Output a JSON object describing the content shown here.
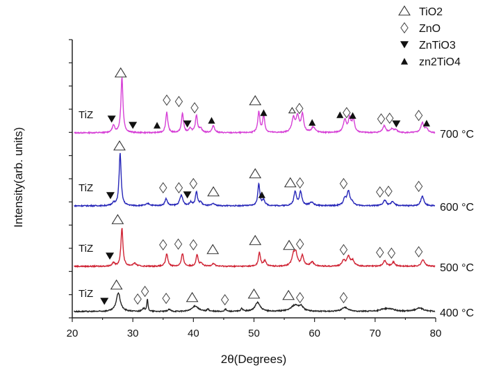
{
  "chart_data": {
    "type": "line",
    "title": "",
    "xlabel": "2θ(Degrees)",
    "ylabel": "Intensity(arb. units)",
    "xlim": [
      20,
      80
    ],
    "ylim": [
      0,
      400
    ],
    "xticks": [
      20,
      30,
      40,
      50,
      60,
      70,
      80
    ],
    "grid": false,
    "legend": {
      "placement": "top-right",
      "entries": [
        {
          "symbol": "open-triangle",
          "label": "TiO2"
        },
        {
          "symbol": "open-diamond",
          "label": "ZnO"
        },
        {
          "symbol": "down-triangle",
          "label": "ZnTiO3"
        },
        {
          "symbol": "up-triangle",
          "label": "zn2TiO4"
        }
      ]
    },
    "series": [
      {
        "name": "700 °C",
        "sample_label": "TiZ",
        "color": "#d63fd6",
        "offset": 266,
        "peaks": [
          [
            26.8,
            10,
            0.25
          ],
          [
            28.2,
            80,
            0.2
          ],
          [
            35.6,
            30,
            0.2
          ],
          [
            38.2,
            28,
            0.2
          ],
          [
            39.5,
            6,
            0.25
          ],
          [
            40.5,
            25,
            0.2
          ],
          [
            41.2,
            6,
            0.25
          ],
          [
            43.3,
            10,
            0.25
          ],
          [
            50.8,
            30,
            0.2
          ],
          [
            51.6,
            25,
            0.2
          ],
          [
            56.5,
            20,
            0.3
          ],
          [
            57.2,
            22,
            0.3
          ],
          [
            58.0,
            25,
            0.25
          ],
          [
            59.8,
            8,
            0.35
          ],
          [
            65.0,
            18,
            0.3
          ],
          [
            65.8,
            20,
            0.25
          ],
          [
            66.4,
            18,
            0.25
          ],
          [
            71.5,
            10,
            0.3
          ],
          [
            72.8,
            5,
            0.3
          ],
          [
            73.4,
            4,
            0.3
          ],
          [
            77.8,
            14,
            0.3
          ],
          [
            78.5,
            5,
            0.3
          ]
        ],
        "markers": [
          [
            26.5,
            "down",
            286
          ],
          [
            28.0,
            "open-tri",
            352
          ],
          [
            30.0,
            "down",
            277
          ],
          [
            34.0,
            "up",
            277
          ],
          [
            35.6,
            "diamond",
            313
          ],
          [
            37.6,
            "diamond",
            311
          ],
          [
            39.0,
            "down",
            279
          ],
          [
            40.2,
            "diamond",
            302
          ],
          [
            43.0,
            "up",
            284
          ],
          [
            50.2,
            "open-tri",
            312
          ],
          [
            51.6,
            "up",
            295
          ],
          [
            56.3,
            "open-tri-small",
            298
          ],
          [
            57.5,
            "diamond",
            301
          ],
          [
            59.6,
            "up",
            281
          ],
          [
            64.2,
            "up",
            292
          ],
          [
            65.3,
            "diamond",
            295
          ],
          [
            66.3,
            "up",
            291
          ],
          [
            71.0,
            "diamond",
            286
          ],
          [
            72.4,
            "diamond",
            287
          ],
          [
            73.5,
            "down",
            279
          ],
          [
            77.2,
            "diamond",
            291
          ],
          [
            78.5,
            "up",
            280
          ]
        ]
      },
      {
        "name": "600 °C",
        "sample_label": "TiZ",
        "color": "#2626b8",
        "offset": 161,
        "peaks": [
          [
            26.8,
            4,
            0.25
          ],
          [
            27.9,
            76,
            0.2
          ],
          [
            32.5,
            3,
            0.4
          ],
          [
            35.5,
            10,
            0.25
          ],
          [
            38.0,
            15,
            0.3
          ],
          [
            39.6,
            5,
            0.25
          ],
          [
            40.5,
            20,
            0.2
          ],
          [
            41.2,
            5,
            0.25
          ],
          [
            43.3,
            3,
            0.3
          ],
          [
            50.8,
            32,
            0.2
          ],
          [
            51.6,
            8,
            0.25
          ],
          [
            56.8,
            20,
            0.25
          ],
          [
            57.7,
            20,
            0.25
          ],
          [
            59.5,
            5,
            0.4
          ],
          [
            65.0,
            10,
            0.3
          ],
          [
            65.6,
            20,
            0.25
          ],
          [
            66.2,
            5,
            0.3
          ],
          [
            71.6,
            8,
            0.3
          ],
          [
            72.9,
            6,
            0.3
          ],
          [
            77.8,
            14,
            0.3
          ]
        ],
        "markers": [
          [
            26.3,
            "down",
            176
          ],
          [
            27.8,
            "open-tri",
            247
          ],
          [
            35.0,
            "diamond",
            187
          ],
          [
            37.6,
            "diamond",
            187
          ],
          [
            39.0,
            "down",
            177
          ],
          [
            40.0,
            "diamond",
            193
          ],
          [
            43.3,
            "open-tri",
            181
          ],
          [
            50.2,
            "open-tri",
            207
          ],
          [
            51.3,
            "up",
            177
          ],
          [
            56.0,
            "open-tri",
            194
          ],
          [
            57.6,
            "diamond",
            194
          ],
          [
            64.8,
            "diamond",
            193
          ],
          [
            70.8,
            "diamond",
            181
          ],
          [
            72.2,
            "diamond",
            182
          ],
          [
            77.2,
            "diamond",
            189
          ]
        ]
      },
      {
        "name": "500 °C",
        "sample_label": "TiZ",
        "color": "#cf2233",
        "offset": 74,
        "peaks": [
          [
            26.8,
            5,
            0.25
          ],
          [
            28.2,
            55,
            0.2
          ],
          [
            30.3,
            4,
            0.35
          ],
          [
            35.6,
            18,
            0.22
          ],
          [
            38.2,
            18,
            0.22
          ],
          [
            40.6,
            17,
            0.2
          ],
          [
            41.3,
            4,
            0.25
          ],
          [
            43.3,
            4,
            0.3
          ],
          [
            50.9,
            20,
            0.2
          ],
          [
            51.8,
            8,
            0.25
          ],
          [
            56.5,
            14,
            0.3
          ],
          [
            56.9,
            18,
            0.3
          ],
          [
            58.0,
            15,
            0.25
          ],
          [
            59.6,
            6,
            0.35
          ],
          [
            64.8,
            8,
            0.3
          ],
          [
            65.6,
            14,
            0.3
          ],
          [
            66.3,
            8,
            0.3
          ],
          [
            71.6,
            8,
            0.3
          ],
          [
            73.0,
            6,
            0.3
          ],
          [
            77.9,
            10,
            0.3
          ]
        ],
        "markers": [
          [
            26.2,
            "down",
            89
          ],
          [
            27.5,
            "open-tri",
            141
          ],
          [
            35.0,
            "diamond",
            105
          ],
          [
            37.5,
            "diamond",
            106
          ],
          [
            40.0,
            "diamond",
            105
          ],
          [
            43.2,
            "open-tri",
            98
          ],
          [
            50.2,
            "open-tri",
            111
          ],
          [
            55.8,
            "open-tri",
            104
          ],
          [
            57.6,
            "diamond",
            106
          ],
          [
            64.8,
            "diamond",
            98
          ],
          [
            70.8,
            "diamond",
            94
          ],
          [
            72.7,
            "diamond",
            93
          ],
          [
            77.2,
            "diamond",
            95
          ]
        ]
      },
      {
        "name": "400 °C",
        "sample_label": "TiZ",
        "color": "#222222",
        "offset": 9,
        "peaks": [
          [
            27.6,
            27,
            0.4
          ],
          [
            31.8,
            4,
            0.25
          ],
          [
            32.4,
            17,
            0.12
          ],
          [
            36.0,
            3,
            0.25
          ],
          [
            40.3,
            8,
            0.6
          ],
          [
            42.4,
            3,
            0.2
          ],
          [
            45.3,
            3,
            0.2
          ],
          [
            48.0,
            4,
            0.2
          ],
          [
            50.6,
            13,
            0.5
          ],
          [
            56.8,
            9,
            0.8
          ],
          [
            57.8,
            6,
            0.4
          ],
          [
            65.0,
            6,
            0.6
          ],
          [
            71.5,
            3,
            0.8
          ],
          [
            72.6,
            3,
            0.8
          ],
          [
            77.3,
            5,
            0.8
          ]
        ],
        "markers": [
          [
            25.3,
            "down",
            24
          ],
          [
            27.3,
            "open-tri",
            47
          ],
          [
            30.8,
            "diamond",
            27
          ],
          [
            32.0,
            "diamond",
            38
          ],
          [
            35.5,
            "diamond",
            28
          ],
          [
            39.8,
            "open-tri",
            29
          ],
          [
            45.2,
            "diamond",
            26
          ],
          [
            50.0,
            "open-tri",
            34
          ],
          [
            55.7,
            "open-tri",
            32
          ],
          [
            57.6,
            "diamond",
            29
          ],
          [
            64.8,
            "diamond",
            29
          ]
        ]
      }
    ]
  }
}
